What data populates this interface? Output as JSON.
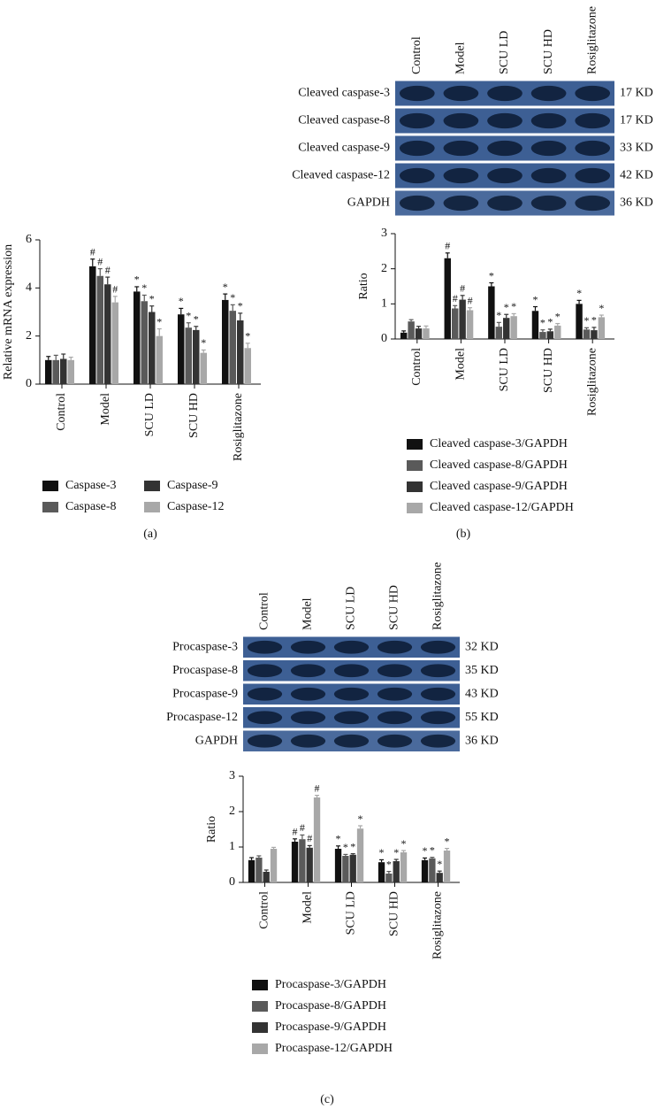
{
  "chart_data": [
    {
      "type": "bar",
      "caption": "(a)",
      "y_label": "Relative mRNA expression",
      "categories": [
        "Control",
        "Model",
        "SCU LD",
        "SCU HD",
        "Rosiglitazone"
      ],
      "ylim": [
        0,
        6
      ],
      "yticks": [
        0,
        2,
        4,
        6
      ],
      "series": [
        {
          "name": "Caspase-3",
          "color": "#111111",
          "values": [
            1.0,
            4.9,
            3.85,
            2.9,
            3.5
          ],
          "errors": [
            0.15,
            0.3,
            0.2,
            0.25,
            0.25
          ],
          "markers": [
            null,
            "#",
            "*",
            "*",
            "*"
          ]
        },
        {
          "name": "Caspase-8",
          "color": "#5a5a5a",
          "values": [
            1.0,
            4.5,
            3.45,
            2.35,
            3.05
          ],
          "errors": [
            0.2,
            0.3,
            0.25,
            0.2,
            0.25
          ],
          "markers": [
            null,
            "#",
            "*",
            "*",
            "*"
          ]
        },
        {
          "name": "Caspase-9",
          "color": "#333333",
          "values": [
            1.05,
            4.15,
            3.0,
            2.25,
            2.65
          ],
          "errors": [
            0.2,
            0.3,
            0.25,
            0.15,
            0.3
          ],
          "markers": [
            null,
            "#",
            "*",
            "*",
            "*"
          ]
        },
        {
          "name": "Caspase-12",
          "color": "#a8a8a8",
          "values": [
            1.0,
            3.4,
            2.0,
            1.3,
            1.5
          ],
          "errors": [
            0.12,
            0.25,
            0.3,
            0.12,
            0.2
          ],
          "markers": [
            null,
            "#",
            "*",
            "*",
            "*"
          ]
        }
      ]
    },
    {
      "type": "bar",
      "caption": "(b)",
      "y_label": "Ratio",
      "categories": [
        "Control",
        "Model",
        "SCU LD",
        "SCU HD",
        "Rosiglitazone"
      ],
      "ylim": [
        0,
        3
      ],
      "yticks": [
        0,
        1,
        2,
        3
      ],
      "blot": {
        "lanes": [
          "Control",
          "Model",
          "SCU LD",
          "SCU HD",
          "Rosiglitazone"
        ],
        "rows": [
          {
            "label": "Cleaved caspase-3",
            "size": "17 KD"
          },
          {
            "label": "Cleaved caspase-8",
            "size": "17 KD"
          },
          {
            "label": "Cleaved caspase-9",
            "size": "33 KD"
          },
          {
            "label": "Cleaved caspase-12",
            "size": "42 KD"
          },
          {
            "label": "GAPDH",
            "size": "36 KD"
          }
        ]
      },
      "series": [
        {
          "name": "Cleaved caspase-3/GAPDH",
          "color": "#111111",
          "values": [
            0.18,
            2.3,
            1.5,
            0.8,
            1.0
          ],
          "errors": [
            0.05,
            0.15,
            0.1,
            0.12,
            0.1
          ],
          "markers": [
            null,
            "#",
            "*",
            "*",
            "*"
          ]
        },
        {
          "name": "Cleaved caspase-8/GAPDH",
          "color": "#5a5a5a",
          "values": [
            0.5,
            0.87,
            0.35,
            0.2,
            0.27
          ],
          "errors": [
            0.05,
            0.08,
            0.12,
            0.06,
            0.05
          ],
          "markers": [
            null,
            "#",
            "*",
            "*",
            "*"
          ]
        },
        {
          "name": "Cleaved caspase-9/GAPDH",
          "color": "#333333",
          "values": [
            0.3,
            1.12,
            0.6,
            0.22,
            0.25
          ],
          "errors": [
            0.06,
            0.12,
            0.1,
            0.06,
            0.08
          ],
          "markers": [
            null,
            "#",
            "*",
            "*",
            "*"
          ]
        },
        {
          "name": "Cleaved caspase-12/GAPDH",
          "color": "#a8a8a8",
          "values": [
            0.3,
            0.82,
            0.65,
            0.38,
            0.62
          ],
          "errors": [
            0.07,
            0.07,
            0.07,
            0.06,
            0.06
          ],
          "markers": [
            null,
            "#",
            "*",
            "*",
            "*"
          ]
        }
      ]
    },
    {
      "type": "bar",
      "caption": "(c)",
      "y_label": "Ratio",
      "categories": [
        "Control",
        "Model",
        "SCU LD",
        "SCU HD",
        "Rosiglitazone"
      ],
      "ylim": [
        0,
        3
      ],
      "yticks": [
        0,
        1,
        2,
        3
      ],
      "blot": {
        "lanes": [
          "Control",
          "Model",
          "SCU LD",
          "SCU HD",
          "Rosiglitazone"
        ],
        "rows": [
          {
            "label": "Procaspase-3",
            "size": "32 KD"
          },
          {
            "label": "Procaspase-8",
            "size": "35 KD"
          },
          {
            "label": "Procaspase-9",
            "size": "43 KD"
          },
          {
            "label": "Procaspase-12",
            "size": "55 KD"
          },
          {
            "label": "GAPDH",
            "size": "36 KD"
          }
        ]
      },
      "series": [
        {
          "name": "Procaspase-3/GAPDH",
          "color": "#111111",
          "values": [
            0.63,
            1.15,
            0.95,
            0.57,
            0.63
          ],
          "errors": [
            0.07,
            0.08,
            0.08,
            0.07,
            0.06
          ],
          "markers": [
            null,
            "#",
            "*",
            "*",
            "*"
          ]
        },
        {
          "name": "Procaspase-8/GAPDH",
          "color": "#5a5a5a",
          "values": [
            0.7,
            1.22,
            0.75,
            0.25,
            0.68
          ],
          "errors": [
            0.05,
            0.12,
            0.04,
            0.06,
            0.03
          ],
          "markers": [
            null,
            "#",
            "*",
            "*",
            "*"
          ]
        },
        {
          "name": "Procaspase-9/GAPDH",
          "color": "#333333",
          "values": [
            0.3,
            0.98,
            0.78,
            0.6,
            0.27
          ],
          "errors": [
            0.05,
            0.06,
            0.03,
            0.05,
            0.05
          ],
          "markers": [
            null,
            "#",
            "*",
            "*",
            "*"
          ]
        },
        {
          "name": "Procaspase-12/GAPDH",
          "color": "#a8a8a8",
          "values": [
            0.95,
            2.4,
            1.52,
            0.85,
            0.9
          ],
          "errors": [
            0.04,
            0.06,
            0.08,
            0.05,
            0.06
          ],
          "markers": [
            null,
            "#",
            "*",
            "*",
            "*"
          ]
        }
      ]
    }
  ]
}
